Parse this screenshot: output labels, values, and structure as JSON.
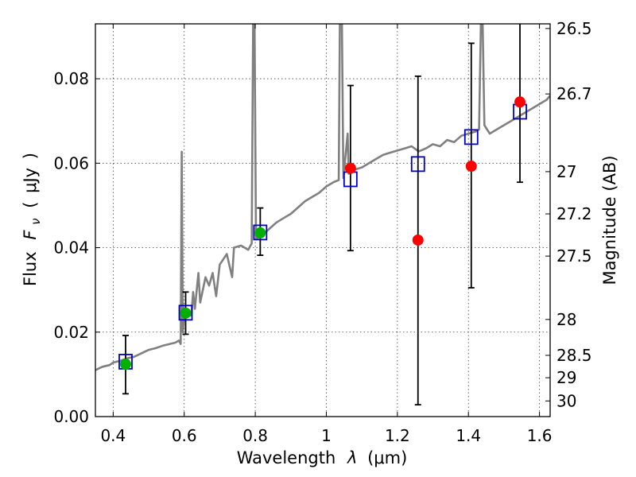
{
  "chart_data": {
    "type": "scatter",
    "xlabel_prefix": "Wavelength",
    "xlabel_symbol": "λ",
    "xlabel_unit": "(μm)",
    "ylabel_prefix": "Flux",
    "ylabel_symbol": "F",
    "ylabel_subscript": "ν",
    "ylabel_unit": "μJy",
    "y2label": "Magnitude (AB)",
    "xlim": [
      0.35,
      1.63
    ],
    "ylim": [
      0.0,
      0.093
    ],
    "x_ticks": [
      0.4,
      0.6,
      0.8,
      1.0,
      1.2,
      1.4,
      1.6
    ],
    "x_tick_labels": [
      "0.4",
      "0.6",
      "0.8",
      "1",
      "1.2",
      "1.4",
      "1.6"
    ],
    "y_ticks": [
      0.0,
      0.02,
      0.04,
      0.06,
      0.08
    ],
    "y_tick_labels": [
      "0.00",
      "0.02",
      "0.04",
      "0.06",
      "0.08"
    ],
    "mag_ticks": [
      {
        "flux": 0.0919,
        "label": "26.5"
      },
      {
        "flux": 0.0764,
        "label": "26.7"
      },
      {
        "flux": 0.058,
        "label": "27"
      },
      {
        "flux": 0.048,
        "label": "27.2"
      },
      {
        "flux": 0.038,
        "label": "27.5"
      },
      {
        "flux": 0.023,
        "label": "28"
      },
      {
        "flux": 0.0145,
        "label": "28.5"
      },
      {
        "flux": 0.0092,
        "label": "29"
      },
      {
        "flux": 0.0037,
        "label": "30"
      }
    ],
    "grid": true,
    "model_color": "#808080",
    "model_spectrum": [
      [
        0.35,
        0.011
      ],
      [
        0.37,
        0.0118
      ],
      [
        0.39,
        0.0122
      ],
      [
        0.4,
        0.0128
      ],
      [
        0.42,
        0.0132
      ],
      [
        0.44,
        0.0138
      ],
      [
        0.46,
        0.0142
      ],
      [
        0.48,
        0.015
      ],
      [
        0.5,
        0.0158
      ],
      [
        0.52,
        0.0162
      ],
      [
        0.54,
        0.0168
      ],
      [
        0.56,
        0.0172
      ],
      [
        0.575,
        0.0175
      ],
      [
        0.585,
        0.018
      ],
      [
        0.59,
        0.0172
      ],
      [
        0.593,
        0.0627
      ],
      [
        0.596,
        0.02
      ],
      [
        0.6,
        0.0235
      ],
      [
        0.62,
        0.024
      ],
      [
        0.625,
        0.0295
      ],
      [
        0.63,
        0.0255
      ],
      [
        0.64,
        0.034
      ],
      [
        0.645,
        0.027
      ],
      [
        0.66,
        0.033
      ],
      [
        0.67,
        0.031
      ],
      [
        0.68,
        0.034
      ],
      [
        0.69,
        0.0285
      ],
      [
        0.7,
        0.036
      ],
      [
        0.72,
        0.0385
      ],
      [
        0.735,
        0.033
      ],
      [
        0.74,
        0.04
      ],
      [
        0.76,
        0.0405
      ],
      [
        0.78,
        0.0395
      ],
      [
        0.79,
        0.041
      ],
      [
        0.794,
        0.093
      ],
      [
        0.798,
        0.093
      ],
      [
        0.802,
        0.042
      ],
      [
        0.82,
        0.043
      ],
      [
        0.84,
        0.0445
      ],
      [
        0.86,
        0.046
      ],
      [
        0.88,
        0.047
      ],
      [
        0.9,
        0.048
      ],
      [
        0.92,
        0.0495
      ],
      [
        0.94,
        0.051
      ],
      [
        0.96,
        0.052
      ],
      [
        0.98,
        0.053
      ],
      [
        1.0,
        0.0545
      ],
      [
        1.02,
        0.0555
      ],
      [
        1.035,
        0.056
      ],
      [
        1.038,
        0.093
      ],
      [
        1.044,
        0.093
      ],
      [
        1.048,
        0.0565
      ],
      [
        1.06,
        0.067
      ],
      [
        1.063,
        0.0575
      ],
      [
        1.08,
        0.0585
      ],
      [
        1.1,
        0.059
      ],
      [
        1.12,
        0.06
      ],
      [
        1.14,
        0.061
      ],
      [
        1.16,
        0.062
      ],
      [
        1.18,
        0.0625
      ],
      [
        1.2,
        0.063
      ],
      [
        1.22,
        0.0635
      ],
      [
        1.24,
        0.064
      ],
      [
        1.26,
        0.0628
      ],
      [
        1.28,
        0.0635
      ],
      [
        1.3,
        0.0645
      ],
      [
        1.32,
        0.064
      ],
      [
        1.34,
        0.0655
      ],
      [
        1.36,
        0.065
      ],
      [
        1.38,
        0.0665
      ],
      [
        1.4,
        0.067
      ],
      [
        1.42,
        0.0675
      ],
      [
        1.43,
        0.068
      ],
      [
        1.435,
        0.093
      ],
      [
        1.44,
        0.093
      ],
      [
        1.445,
        0.069
      ],
      [
        1.46,
        0.067
      ],
      [
        1.48,
        0.068
      ],
      [
        1.5,
        0.069
      ],
      [
        1.52,
        0.07
      ],
      [
        1.54,
        0.071
      ],
      [
        1.56,
        0.072
      ],
      [
        1.58,
        0.073
      ],
      [
        1.6,
        0.074
      ],
      [
        1.62,
        0.075
      ],
      [
        1.63,
        0.076
      ]
    ],
    "observed_points": [
      {
        "x": 0.435,
        "y": 0.0124,
        "err_lo": 0.0054,
        "err_hi": 0.0192,
        "color": "#00b000"
      },
      {
        "x": 0.604,
        "y": 0.0245,
        "err_lo": 0.0195,
        "err_hi": 0.0295,
        "color": "#00b000"
      },
      {
        "x": 0.814,
        "y": 0.0435,
        "err_lo": 0.0382,
        "err_hi": 0.0494,
        "color": "#00b000"
      },
      {
        "x": 1.068,
        "y": 0.0588,
        "err_lo": 0.0393,
        "err_hi": 0.0784,
        "color": "#ff0000"
      },
      {
        "x": 1.258,
        "y": 0.0418,
        "err_lo": 0.0028,
        "err_hi": 0.0806,
        "color": "#ff0000"
      },
      {
        "x": 1.408,
        "y": 0.0593,
        "err_lo": 0.0305,
        "err_hi": 0.0884,
        "color": "#ff0000"
      },
      {
        "x": 1.545,
        "y": 0.0745,
        "err_lo": 0.0555,
        "err_hi": 0.0935,
        "color": "#ff0000"
      }
    ],
    "model_points": [
      {
        "x": 0.435,
        "y": 0.013
      },
      {
        "x": 0.604,
        "y": 0.0246
      },
      {
        "x": 0.814,
        "y": 0.0436
      },
      {
        "x": 1.068,
        "y": 0.0562
      },
      {
        "x": 1.258,
        "y": 0.0598
      },
      {
        "x": 1.408,
        "y": 0.0662
      },
      {
        "x": 1.545,
        "y": 0.0722
      }
    ],
    "model_point_color": "#0000cc"
  }
}
